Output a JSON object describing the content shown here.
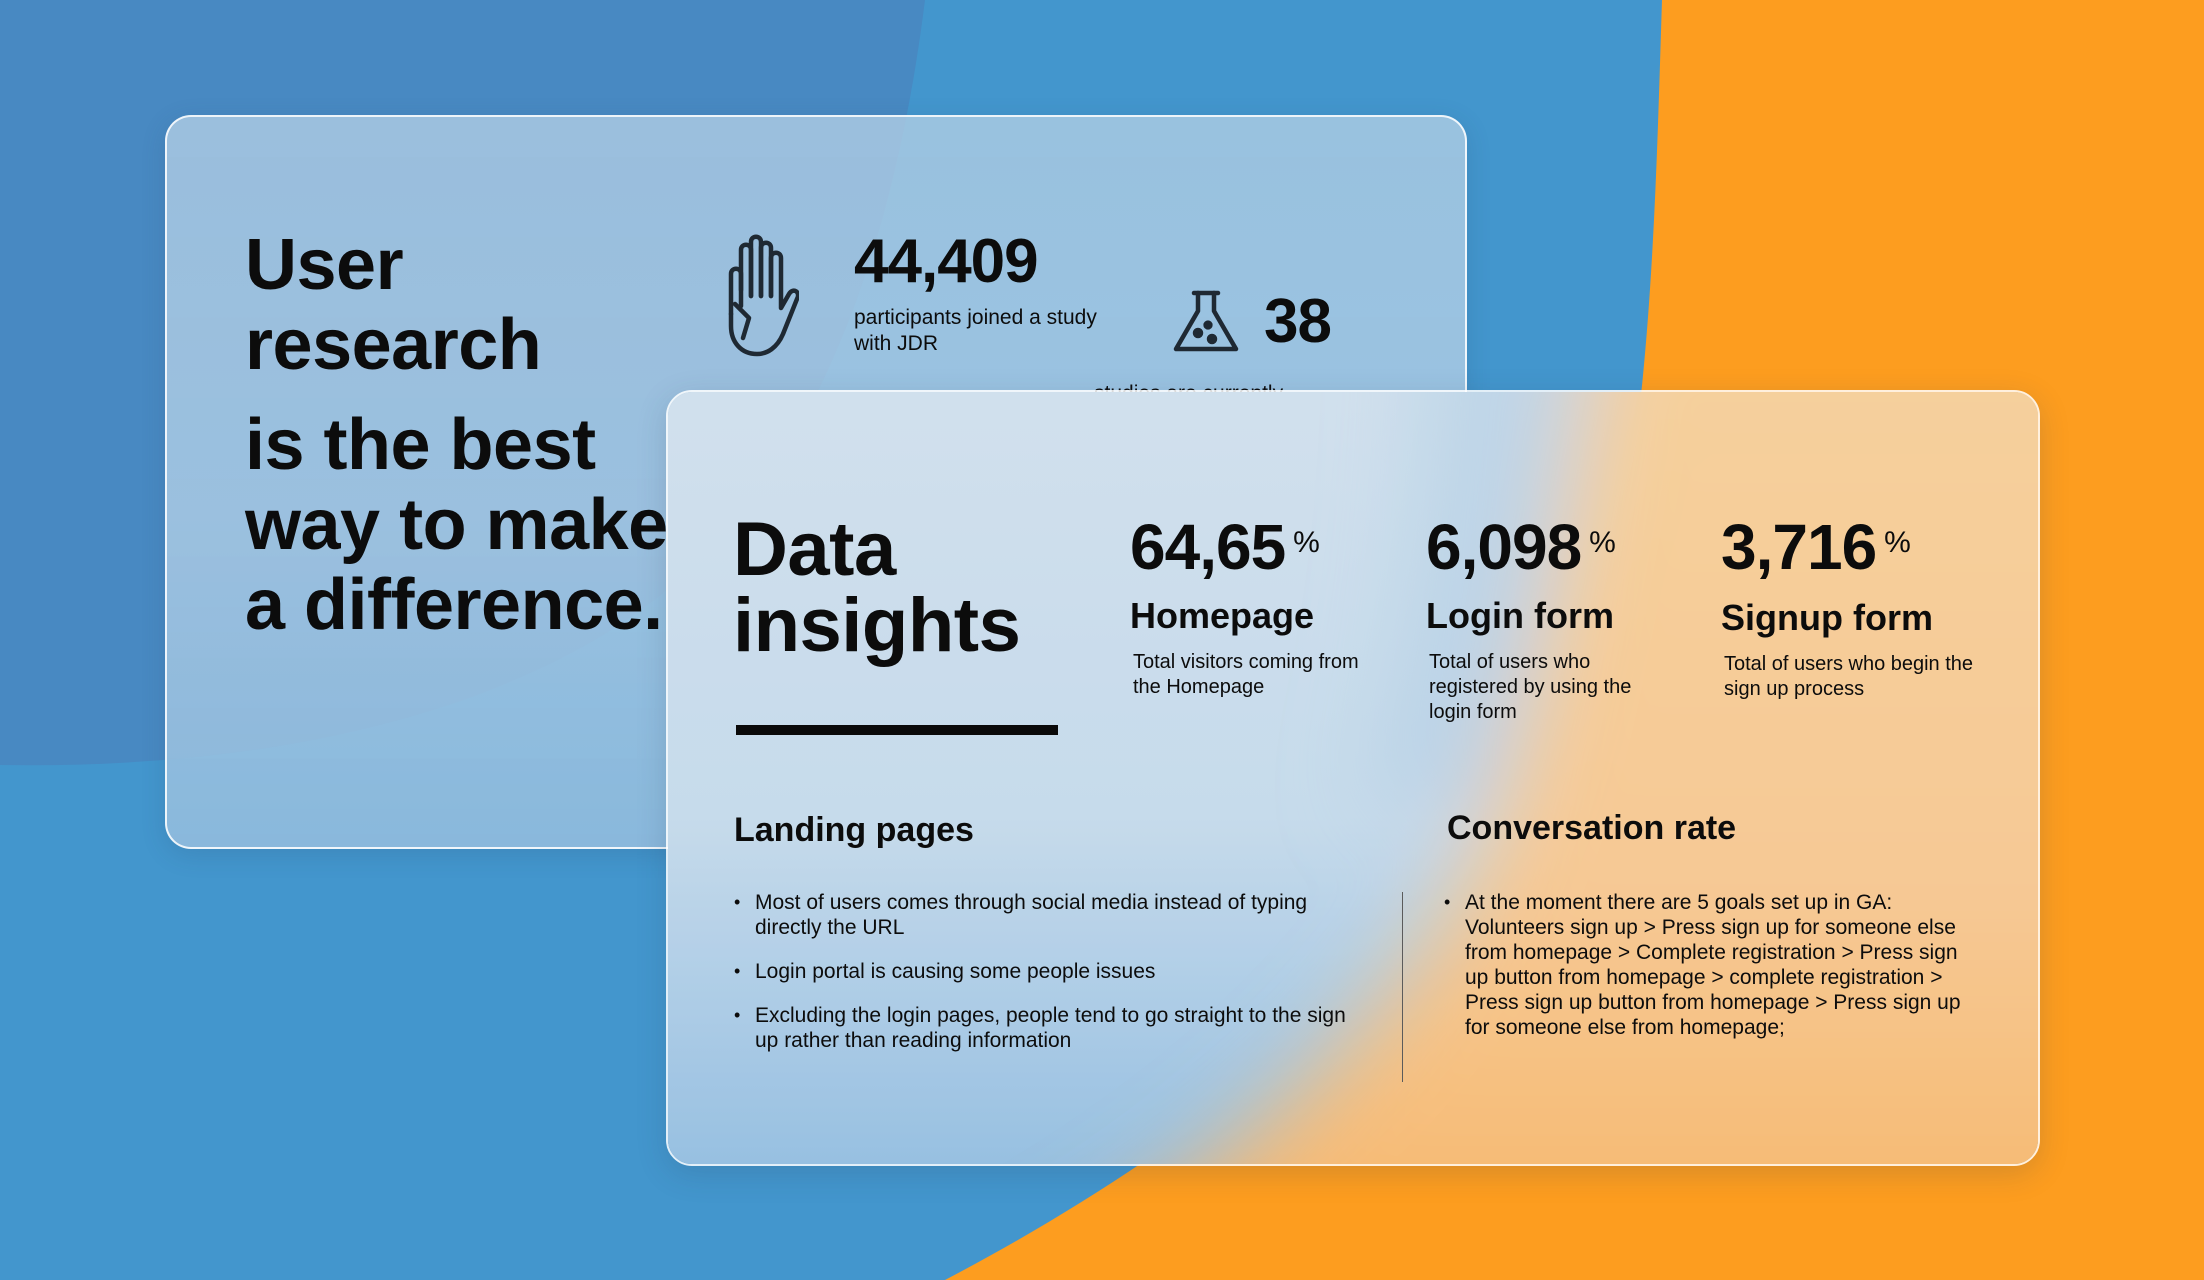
{
  "theme": {
    "background_blue": "#4396cd",
    "background_blue_dark": "#4a87c0",
    "background_orange": "#fd9d1f",
    "text": "#0c0c0c"
  },
  "research_card": {
    "headline_line1": "User research",
    "headline_line2": "is the best way to make a difference.",
    "participants": {
      "icon": "hand-icon",
      "value": "44,409",
      "description": "participants joined a study with JDR"
    },
    "studies": {
      "icon": "flask-icon",
      "value": "38",
      "description": "studies are currently"
    }
  },
  "insights_card": {
    "title": "Data insights",
    "metrics": [
      {
        "value": "64,65",
        "unit": "%",
        "label": "Homepage",
        "description": "Total visitors coming from the Homepage"
      },
      {
        "value": "6,098",
        "unit": "%",
        "label": "Login form",
        "description": "Total of users who registered by using the login form"
      },
      {
        "value": "3,716",
        "unit": "%",
        "label": "Signup form",
        "description": "Total of users who begin the sign up process"
      }
    ],
    "landing_pages": {
      "title": "Landing pages",
      "items": [
        "Most of users comes through social media instead of typing directly the URL",
        "Login portal is causing some people issues",
        "Excluding the login pages, people tend to go straight to the sign up rather than reading information"
      ]
    },
    "conversion": {
      "title": "Conversation rate",
      "items": [
        "At the moment there are 5 goals set up in GA: Volunteers sign up > Press sign up for someone else from homepage > Complete registration > Press sign up button from homepage > complete registration > Press sign up button from homepage > Press sign up for someone else from homepage;"
      ]
    }
  }
}
